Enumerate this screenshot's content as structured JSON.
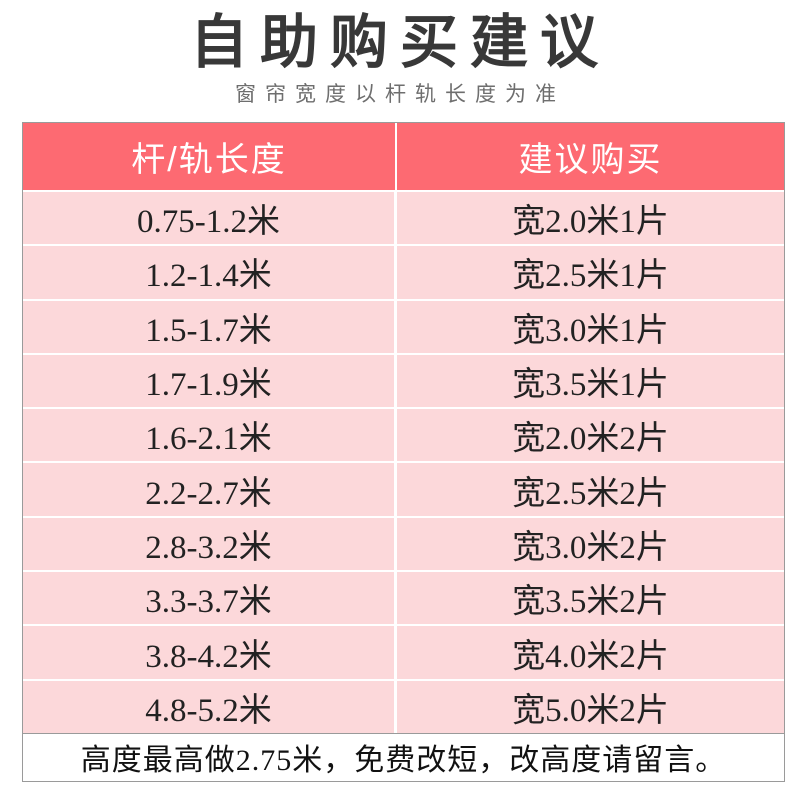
{
  "title": "自助购买建议",
  "subtitle": "窗帘宽度以杆轨长度为准",
  "colors": {
    "header_bg": "#fd6a72",
    "row_bg": "#fcd8da",
    "border": "#9a9a9a",
    "header_text": "#ffffff",
    "cell_text": "#222222"
  },
  "table": {
    "columns": [
      "杆/轨长度",
      "建议购买"
    ],
    "rows": [
      {
        "length": "0.75-1.2米",
        "suggestion": "宽2.0米1片"
      },
      {
        "length": "1.2-1.4米",
        "suggestion": "宽2.5米1片"
      },
      {
        "length": "1.5-1.7米",
        "suggestion": "宽3.0米1片"
      },
      {
        "length": "1.7-1.9米",
        "suggestion": "宽3.5米1片"
      },
      {
        "length": "1.6-2.1米",
        "suggestion": "宽2.0米2片"
      },
      {
        "length": "2.2-2.7米",
        "suggestion": "宽2.5米2片"
      },
      {
        "length": "2.8-3.2米",
        "suggestion": "宽3.0米2片"
      },
      {
        "length": "3.3-3.7米",
        "suggestion": "宽3.5米2片"
      },
      {
        "length": "3.8-4.2米",
        "suggestion": "宽4.0米2片"
      },
      {
        "length": "4.8-5.2米",
        "suggestion": "宽5.0米2片"
      }
    ]
  },
  "footer_note": "高度最高做2.75米，免费改短，改高度请留言。"
}
